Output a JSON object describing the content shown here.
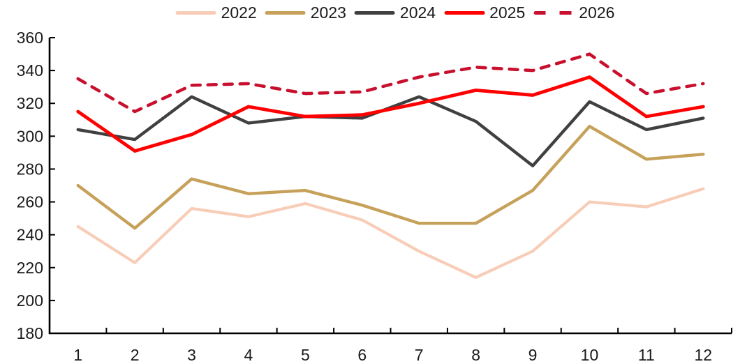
{
  "chart_data": {
    "type": "line",
    "title": "",
    "xlabel": "",
    "ylabel": "",
    "grid": false,
    "legend_position": "top",
    "categories": [
      "1",
      "2",
      "3",
      "4",
      "5",
      "6",
      "7",
      "8",
      "9",
      "10",
      "11",
      "12"
    ],
    "ylim": [
      180,
      360
    ],
    "ytick_step": 20,
    "axis_color": "#000000",
    "label_color": "#1a1a1a",
    "series": [
      {
        "name": "2022",
        "color": "#F8CDB8",
        "style": "solid",
        "values": [
          245,
          223,
          256,
          251,
          259,
          249,
          230,
          214,
          230,
          260,
          257,
          268
        ]
      },
      {
        "name": "2023",
        "color": "#C6A15A",
        "style": "solid",
        "values": [
          270,
          244,
          274,
          265,
          267,
          258,
          247,
          247,
          267,
          306,
          286,
          289
        ]
      },
      {
        "name": "2024",
        "color": "#404040",
        "style": "solid",
        "values": [
          304,
          298,
          324,
          308,
          312,
          311,
          324,
          309,
          282,
          321,
          304,
          311
        ]
      },
      {
        "name": "2025",
        "color": "#FF0000",
        "style": "solid",
        "values": [
          315,
          291,
          301,
          318,
          312,
          313,
          320,
          328,
          325,
          336,
          312,
          318
        ]
      },
      {
        "name": "2026",
        "color": "#C8102E",
        "style": "dashed",
        "values": [
          335,
          315,
          331,
          332,
          326,
          327,
          336,
          342,
          340,
          350,
          326,
          332
        ]
      }
    ]
  }
}
